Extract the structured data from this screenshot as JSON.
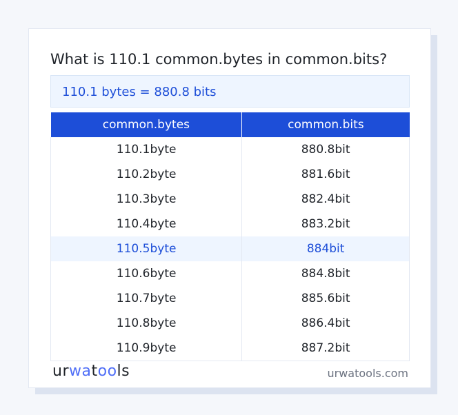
{
  "title": "What is 110.1 common.bytes in common.bits?",
  "result": "110.1 bytes = 880.8 bits",
  "table": {
    "headers": [
      "common.bytes",
      "common.bits"
    ],
    "rows": [
      [
        "110.1byte",
        "880.8bit"
      ],
      [
        "110.2byte",
        "881.6bit"
      ],
      [
        "110.3byte",
        "882.4bit"
      ],
      [
        "110.4byte",
        "883.2bit"
      ],
      [
        "110.5byte",
        "884bit"
      ],
      [
        "110.6byte",
        "884.8bit"
      ],
      [
        "110.7byte",
        "885.6bit"
      ],
      [
        "110.8byte",
        "886.4bit"
      ],
      [
        "110.9byte",
        "887.2bit"
      ]
    ],
    "highlighted_row": 4
  },
  "footer": {
    "logo": "urwatools",
    "site": "urwatools.com"
  },
  "colors": {
    "accent": "#1d4ed8",
    "highlight_bg": "#eef5ff"
  }
}
